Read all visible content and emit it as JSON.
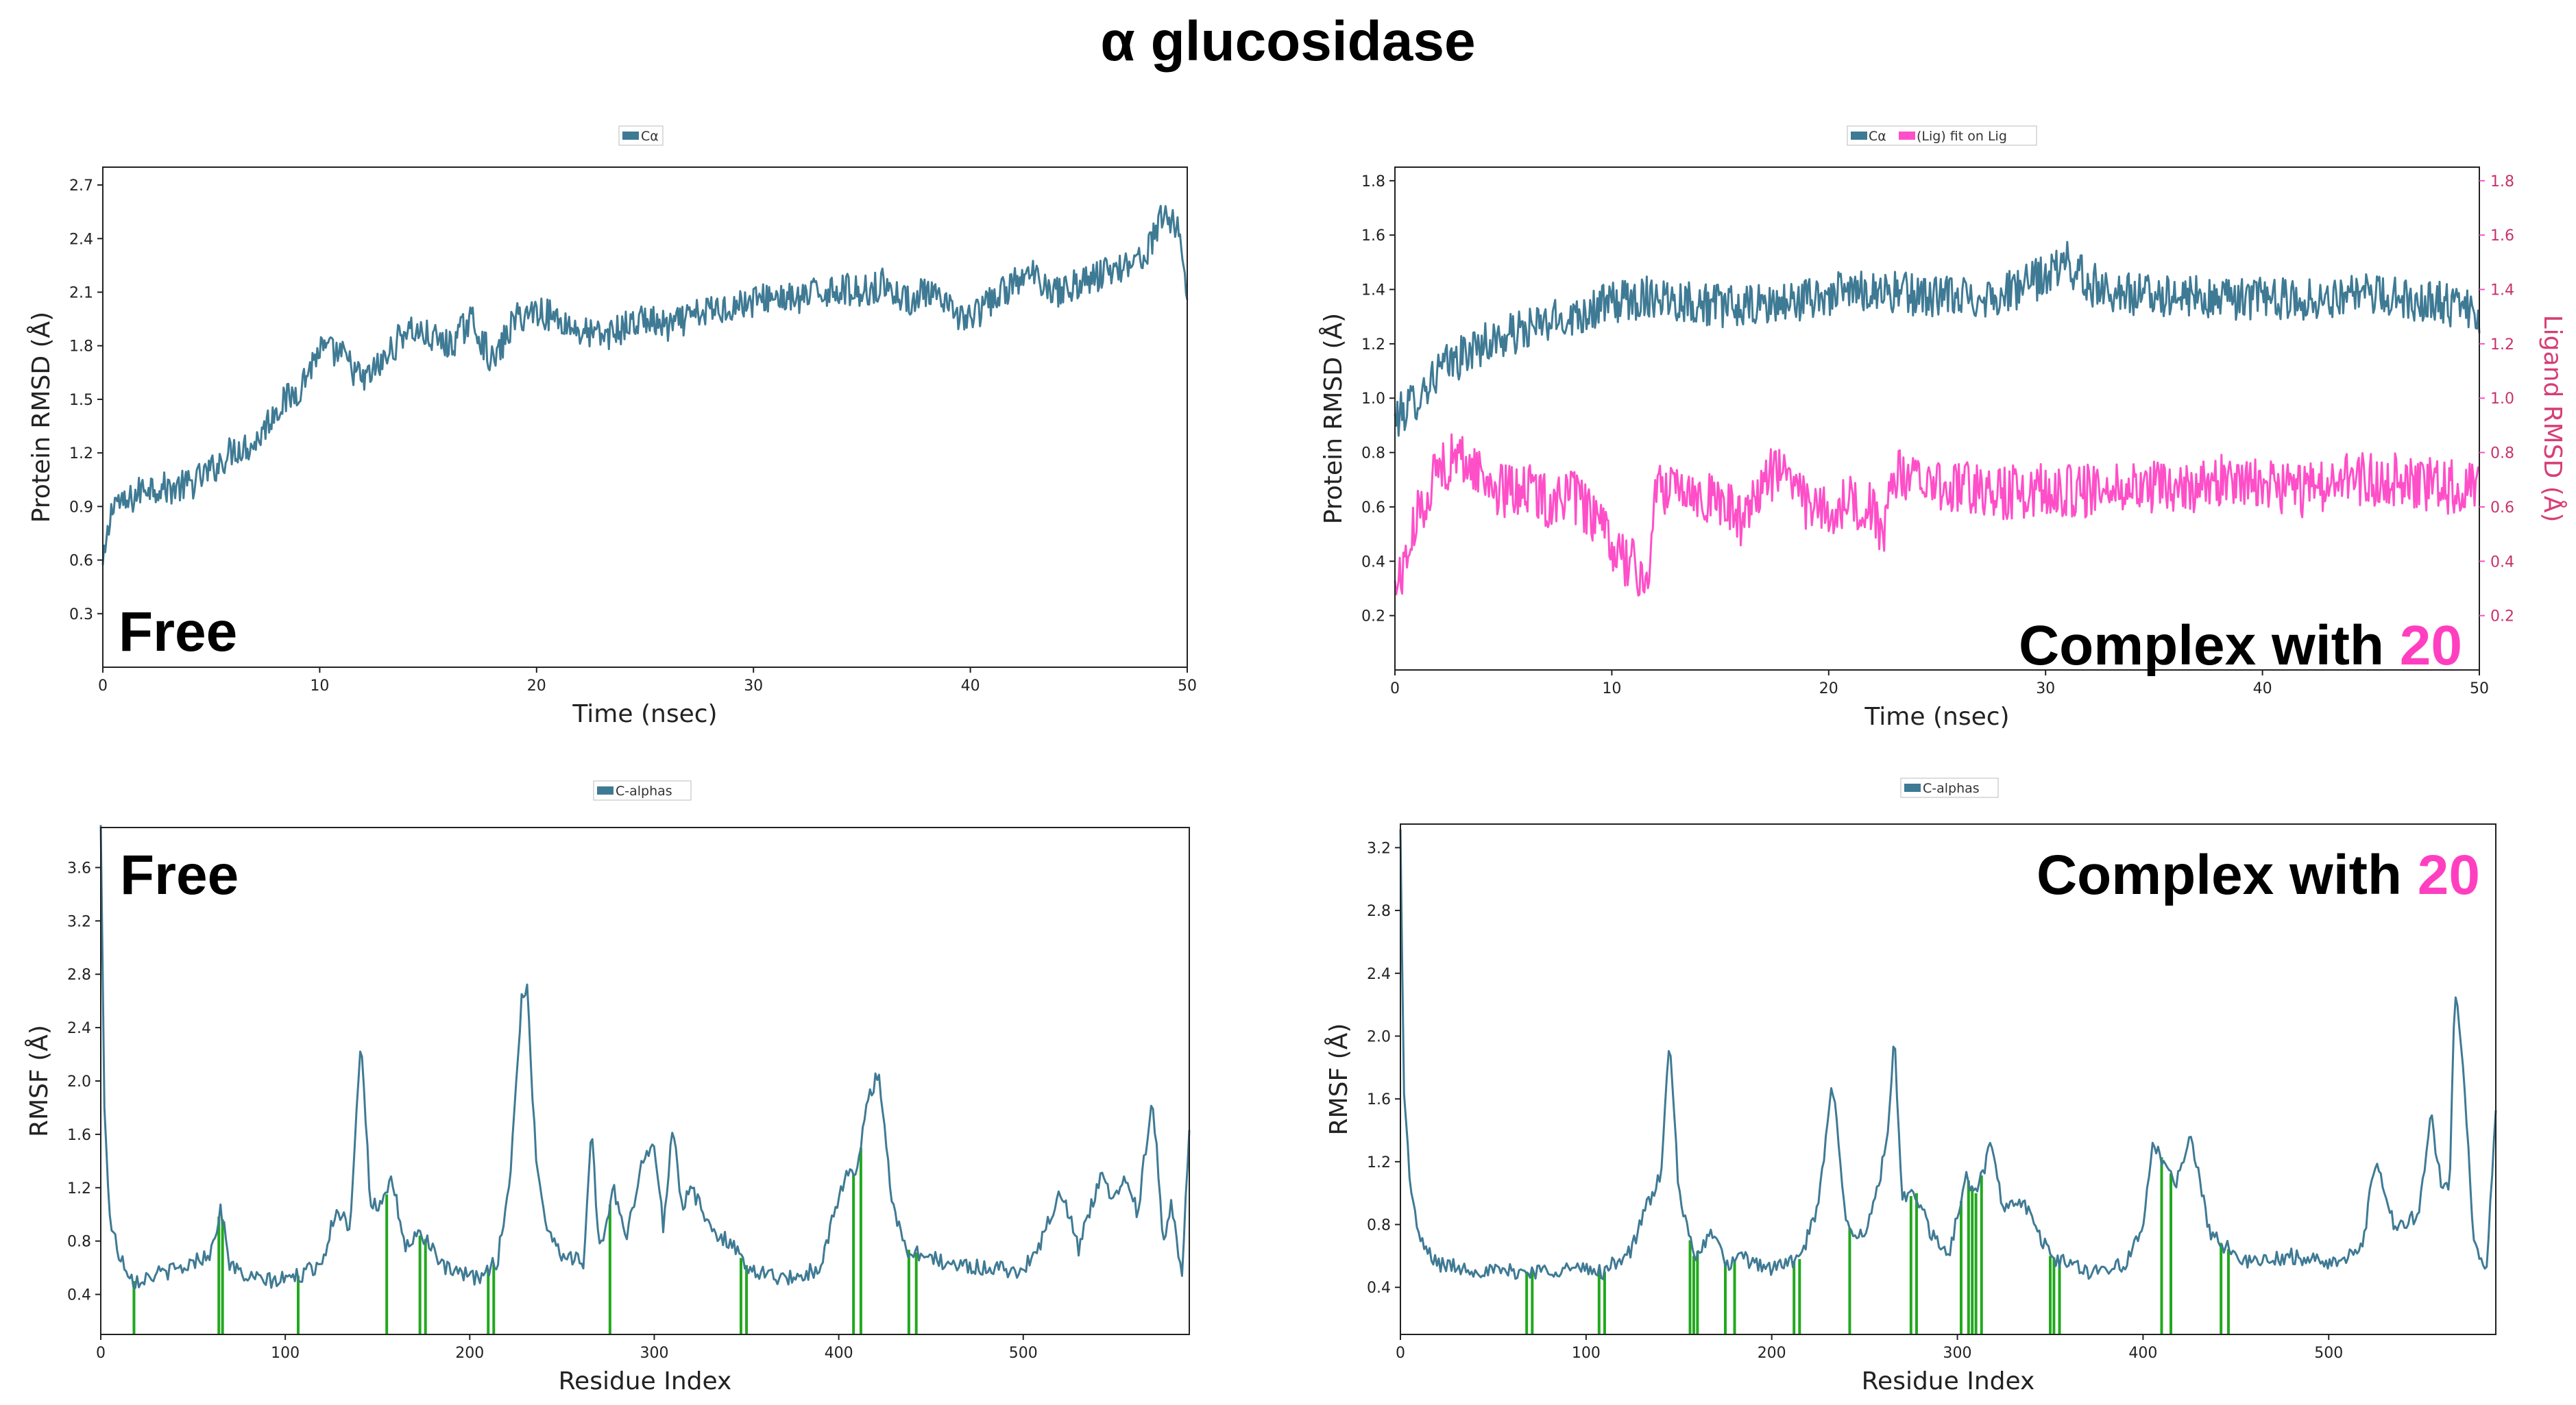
{
  "title": "α glucosidase",
  "colors": {
    "protein": "#3f7a94",
    "ligand": "#ff4fc8",
    "contact": "#22a81e",
    "highlight": "#ff3fc0"
  },
  "chart_data": [
    {
      "type": "line",
      "title": "",
      "legend": [
        "Cα"
      ],
      "xlabel": "Time (nsec)",
      "ylabel": "Protein RMSD (Å)",
      "xlim": [
        0,
        50
      ],
      "ylim": [
        0.0,
        2.8
      ],
      "xticks": [
        "0",
        "10",
        "20",
        "30",
        "40",
        "50"
      ],
      "yticks": [
        "0.3",
        "0.6",
        "0.9",
        "1.2",
        "1.5",
        "1.8",
        "2.1",
        "2.4",
        "2.7"
      ],
      "annotation": "Free",
      "series": [
        {
          "name": "Cα",
          "axis": "left",
          "x": [
            0,
            0.5,
            1,
            2,
            3,
            4,
            5,
            6,
            7,
            8,
            9,
            10,
            11,
            12,
            13,
            14,
            15,
            16,
            17,
            18,
            19,
            20,
            21,
            22,
            23,
            24,
            25,
            26,
            27,
            28,
            29,
            30,
            31,
            32,
            33,
            34,
            35,
            36,
            37,
            38,
            39,
            40,
            41,
            42,
            43,
            44,
            45,
            46,
            47,
            48,
            49,
            49.6,
            50
          ],
          "y": [
            0.55,
            0.95,
            0.9,
            1.02,
            1.0,
            1.02,
            1.1,
            1.22,
            1.25,
            1.45,
            1.55,
            1.78,
            1.75,
            1.6,
            1.72,
            1.9,
            1.85,
            1.8,
            1.95,
            1.7,
            1.95,
            2.0,
            1.95,
            1.88,
            1.85,
            1.9,
            1.95,
            1.9,
            1.95,
            2.0,
            2.02,
            2.05,
            2.08,
            2.05,
            2.1,
            2.12,
            2.1,
            2.15,
            2.05,
            2.1,
            2.0,
            1.95,
            2.05,
            2.15,
            2.2,
            2.1,
            2.15,
            2.2,
            2.25,
            2.3,
            2.55,
            2.45,
            2.1
          ],
          "noise": 0.09
        }
      ]
    },
    {
      "type": "line",
      "title": "",
      "legend": [
        "Cα",
        "(Lig) fit on Lig"
      ],
      "xlabel": "Time (nsec)",
      "ylabel": "Protein RMSD (Å)",
      "ylabel_right": "Ligand RMSD (Å)",
      "xlim": [
        0,
        50
      ],
      "ylim": [
        0.0,
        1.85
      ],
      "ylim_right": [
        0.0,
        1.85
      ],
      "xticks": [
        "0",
        "10",
        "20",
        "30",
        "40",
        "50"
      ],
      "yticks": [
        "0.2",
        "0.4",
        "0.6",
        "0.8",
        "1.0",
        "1.2",
        "1.4",
        "1.6",
        "1.8"
      ],
      "yticks_right": [
        "0.2",
        "0.4",
        "0.6",
        "0.8",
        "1.0",
        "1.2",
        "1.4",
        "1.6",
        "1.8"
      ],
      "annotation": {
        "text": "Complex with ",
        "highlight": "20"
      },
      "series": [
        {
          "name": "Cα",
          "axis": "left",
          "x": [
            0,
            1,
            2,
            3,
            4,
            5,
            6,
            8,
            10,
            12,
            14,
            16,
            18,
            20,
            22,
            24,
            26,
            28,
            30,
            31,
            32,
            34,
            36,
            38,
            40,
            42,
            44,
            46,
            48,
            50
          ],
          "y": [
            0.92,
            1.0,
            1.1,
            1.15,
            1.2,
            1.22,
            1.25,
            1.3,
            1.35,
            1.38,
            1.35,
            1.33,
            1.35,
            1.38,
            1.4,
            1.38,
            1.37,
            1.38,
            1.45,
            1.5,
            1.42,
            1.38,
            1.38,
            1.36,
            1.37,
            1.36,
            1.38,
            1.37,
            1.36,
            1.3
          ],
          "noise": 0.08
        },
        {
          "name": "(Lig) fit on Lig",
          "axis": "right",
          "x": [
            0,
            0.5,
            1,
            2,
            3,
            4,
            5,
            6,
            7,
            8,
            9,
            10,
            11,
            11.6,
            12,
            13,
            14,
            15,
            16,
            17,
            18,
            19,
            20,
            21,
            22,
            22.5,
            23,
            24,
            26,
            28,
            30,
            32,
            34,
            36,
            38,
            40,
            42,
            44,
            46,
            48,
            50
          ],
          "y": [
            0.3,
            0.4,
            0.55,
            0.75,
            0.78,
            0.72,
            0.65,
            0.68,
            0.62,
            0.65,
            0.58,
            0.45,
            0.38,
            0.3,
            0.65,
            0.7,
            0.65,
            0.62,
            0.55,
            0.7,
            0.75,
            0.6,
            0.58,
            0.62,
            0.6,
            0.45,
            0.72,
            0.7,
            0.68,
            0.65,
            0.67,
            0.66,
            0.68,
            0.66,
            0.7,
            0.68,
            0.66,
            0.7,
            0.7,
            0.68,
            0.66
          ],
          "noise": 0.1
        }
      ]
    },
    {
      "type": "line",
      "title": "",
      "legend": [
        "C-alphas"
      ],
      "xlabel": "Residue Index",
      "ylabel": "RMSF (Å)",
      "xlim": [
        0,
        590
      ],
      "ylim": [
        0.1,
        3.9
      ],
      "xticks": [
        "0",
        "100",
        "200",
        "300",
        "400",
        "500"
      ],
      "yticks": [
        "0.4",
        "0.8",
        "1.2",
        "1.6",
        "2.0",
        "2.4",
        "2.8",
        "3.2",
        "3.6"
      ],
      "annotation": "Free",
      "contact_residues": [
        18,
        64,
        66,
        107,
        155,
        173,
        176,
        210,
        213,
        276,
        347,
        350,
        408,
        412,
        438,
        442
      ],
      "series": [
        {
          "name": "C-alphas",
          "axis": "left",
          "x": [
            0,
            2,
            5,
            10,
            18,
            30,
            45,
            60,
            65,
            70,
            80,
            95,
            110,
            120,
            128,
            135,
            141,
            146,
            152,
            158,
            165,
            172,
            178,
            185,
            195,
            205,
            215,
            222,
            228,
            231,
            236,
            242,
            250,
            262,
            266,
            270,
            278,
            285,
            293,
            300,
            305,
            310,
            315,
            320,
            330,
            340,
            350,
            360,
            375,
            390,
            400,
            405,
            410,
            416,
            422,
            428,
            435,
            445,
            460,
            480,
            500,
            510,
            520,
            530,
            542,
            548,
            555,
            562,
            570,
            576,
            580,
            586,
            590
          ],
          "y": [
            3.9,
            1.8,
            0.95,
            0.7,
            0.5,
            0.55,
            0.6,
            0.72,
            1.05,
            0.62,
            0.52,
            0.5,
            0.55,
            0.65,
            1.05,
            0.9,
            2.35,
            1.1,
            1.05,
            1.25,
            0.75,
            0.85,
            0.8,
            0.6,
            0.55,
            0.52,
            0.65,
            1.3,
            2.6,
            2.7,
            1.4,
            0.9,
            0.7,
            0.65,
            1.7,
            0.7,
            1.2,
            0.8,
            1.4,
            1.5,
            0.9,
            1.7,
            1.05,
            1.2,
            0.9,
            0.8,
            0.62,
            0.55,
            0.52,
            0.6,
            1.15,
            1.3,
            1.3,
            1.9,
            2.05,
            1.2,
            0.75,
            0.7,
            0.62,
            0.6,
            0.58,
            0.8,
            1.2,
            0.75,
            1.3,
            1.1,
            1.3,
            1.0,
            1.9,
            0.8,
            1.1,
            0.5,
            1.65
          ],
          "noise": 0.06
        }
      ]
    },
    {
      "type": "line",
      "title": "",
      "legend": [
        "C-alphas"
      ],
      "xlabel": "Residue Index",
      "ylabel": "RMSF (Å)",
      "xlim": [
        0,
        590
      ],
      "ylim": [
        0.1,
        3.35
      ],
      "xticks": [
        "0",
        "100",
        "200",
        "300",
        "400",
        "500"
      ],
      "yticks": [
        "0.4",
        "0.8",
        "1.2",
        "1.6",
        "2.0",
        "2.4",
        "2.8",
        "3.2"
      ],
      "annotation": {
        "text": "Complex with ",
        "highlight": "20"
      },
      "contact_residues": [
        68,
        71,
        107,
        110,
        156,
        158,
        160,
        175,
        180,
        212,
        215,
        242,
        275,
        278,
        302,
        306,
        308,
        310,
        313,
        350,
        352,
        355,
        410,
        415,
        442,
        446
      ],
      "series": [
        {
          "name": "C-alphas",
          "axis": "left",
          "x": [
            0,
            2,
            5,
            10,
            20,
            35,
            50,
            70,
            90,
            110,
            125,
            132,
            140,
            145,
            150,
            158,
            168,
            175,
            185,
            200,
            215,
            225,
            232,
            235,
            240,
            250,
            262,
            266,
            270,
            278,
            285,
            295,
            305,
            310,
            318,
            325,
            335,
            350,
            370,
            390,
            400,
            405,
            412,
            418,
            425,
            430,
            436,
            445,
            460,
            480,
            500,
            518,
            525,
            535,
            548,
            555,
            560,
            565,
            568,
            572,
            578,
            585,
            590
          ],
          "y": [
            3.3,
            1.6,
            1.1,
            0.7,
            0.55,
            0.52,
            0.5,
            0.5,
            0.52,
            0.5,
            0.65,
            0.9,
            1.1,
            1.95,
            1.0,
            0.6,
            0.75,
            0.55,
            0.58,
            0.52,
            0.58,
            0.9,
            1.65,
            1.5,
            0.8,
            0.7,
            1.3,
            2.0,
            0.95,
            1.0,
            0.75,
            0.6,
            1.1,
            1.0,
            1.3,
            0.9,
            0.95,
            0.6,
            0.5,
            0.55,
            0.75,
            1.3,
            1.2,
            1.05,
            1.4,
            1.1,
            0.75,
            0.65,
            0.55,
            0.6,
            0.55,
            0.65,
            1.2,
            0.8,
            0.85,
            1.5,
            1.1,
            1.0,
            2.3,
            1.9,
            0.7,
            0.5,
            1.55
          ],
          "noise": 0.05
        }
      ]
    }
  ]
}
